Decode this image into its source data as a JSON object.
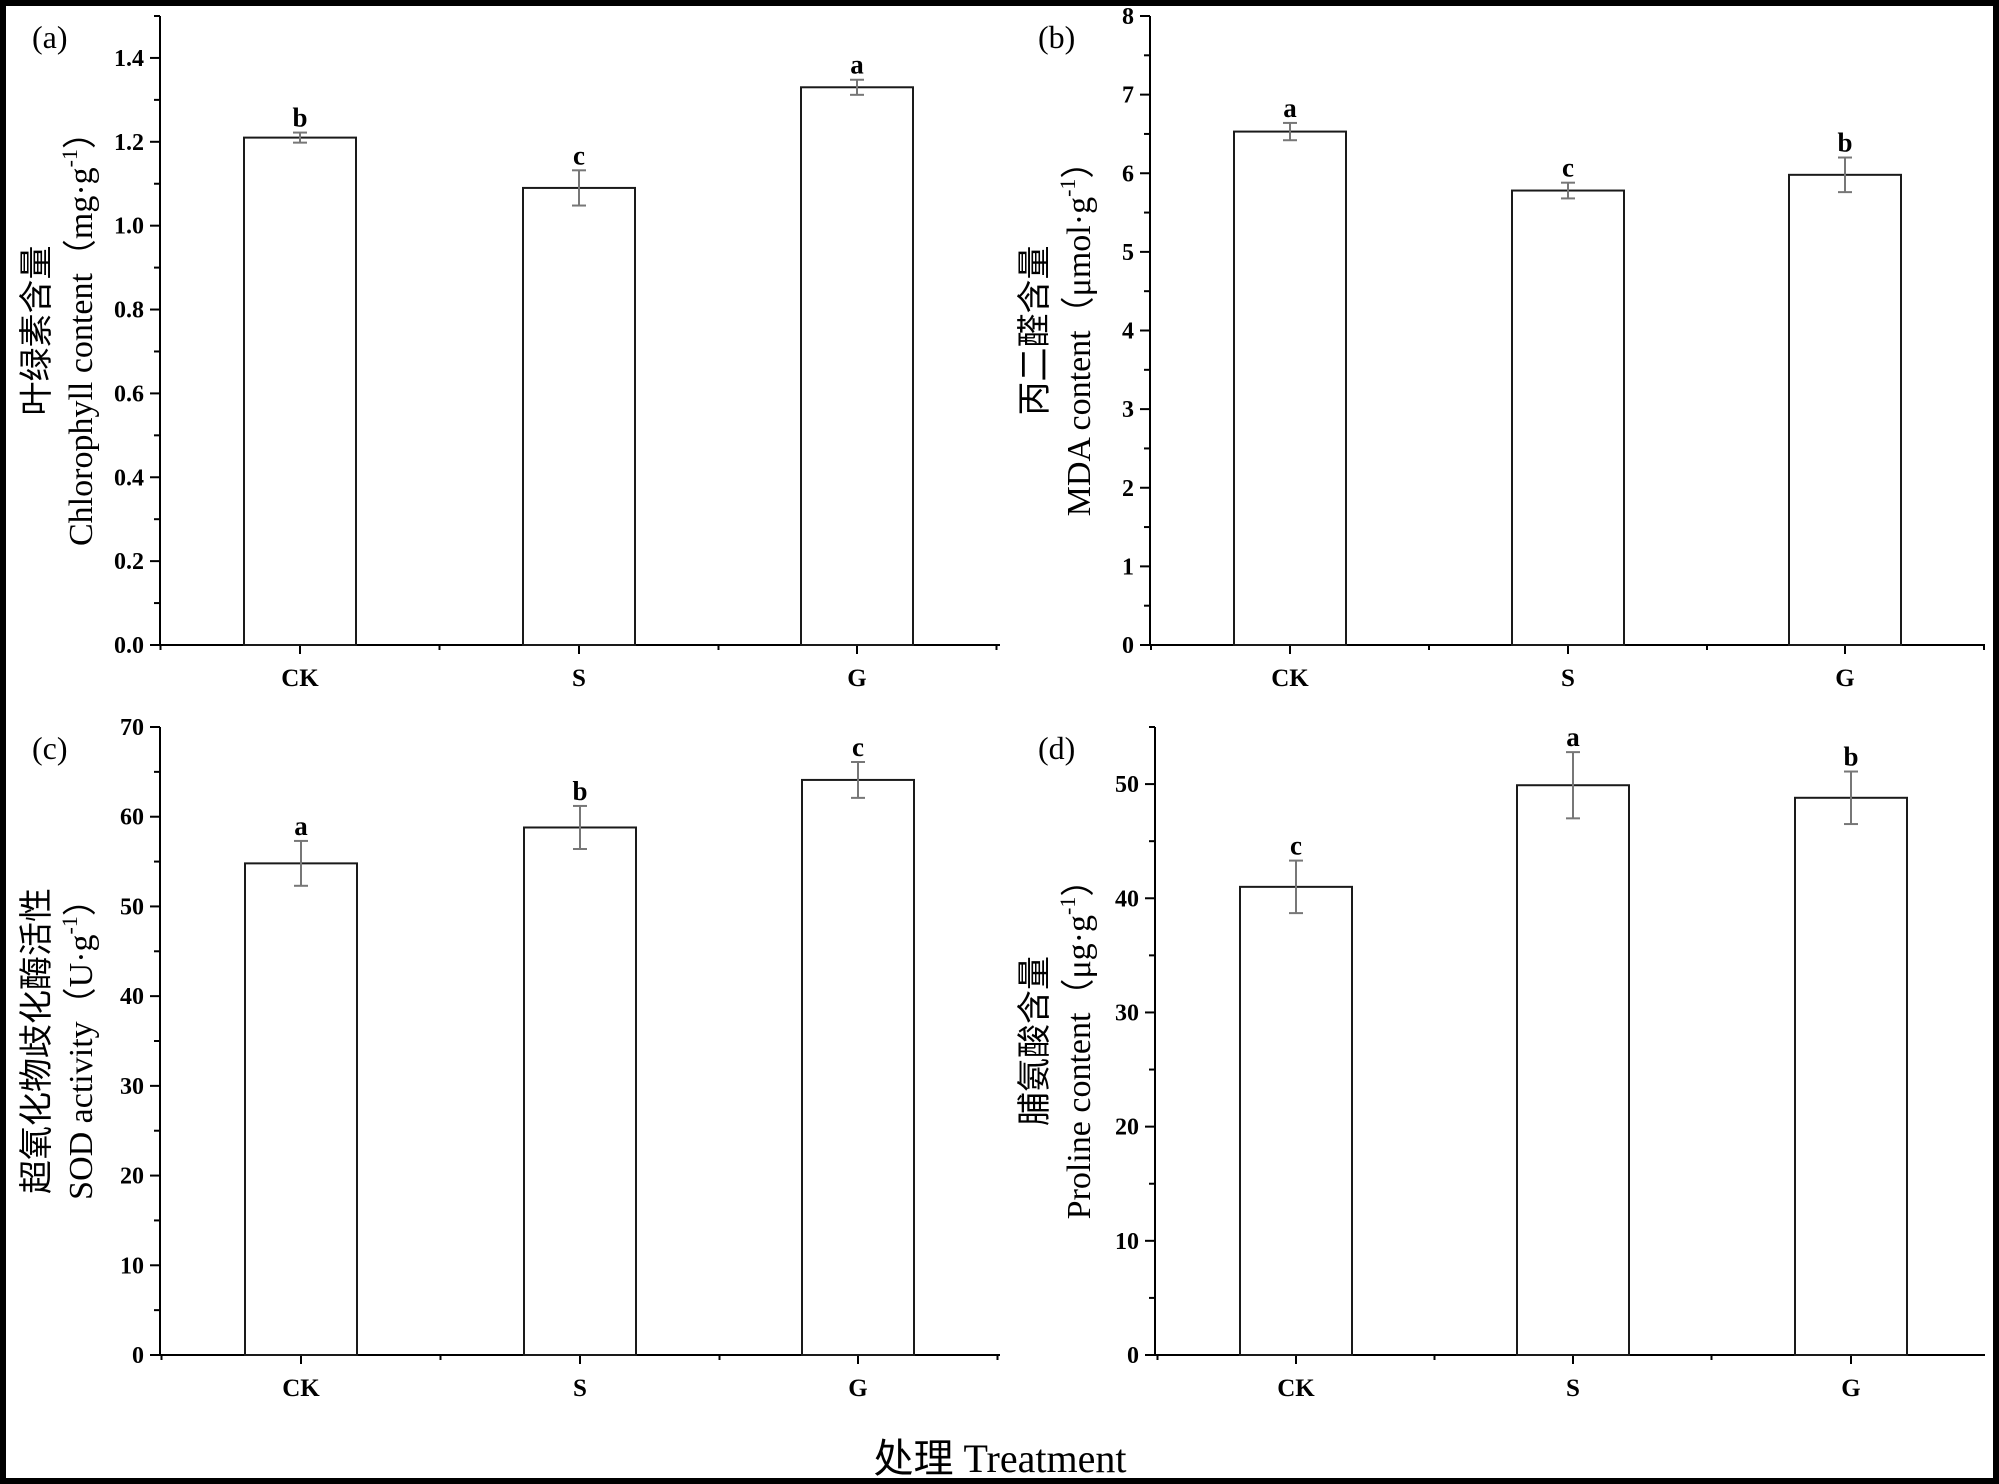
{
  "figure": {
    "xlabel": "处理  Treatment"
  },
  "chart_data": [
    {
      "type": "bar",
      "panel_label": "(a)",
      "categories": [
        "CK",
        "S",
        "G"
      ],
      "values": [
        1.21,
        1.09,
        1.33
      ],
      "errors": [
        0.012,
        0.042,
        0.018
      ],
      "significance": [
        "b",
        "c",
        "a"
      ],
      "ylabel_line1": "叶绿素含量",
      "ylabel_line2": "Chlorophyll content（mg·g",
      "ylabel_sup": "-1",
      "ylabel_close": "）",
      "ylim": [
        0,
        1.5
      ],
      "yticks": [
        0.0,
        0.2,
        0.4,
        0.6,
        0.8,
        1.0,
        1.2,
        1.4
      ],
      "ytick_labels": [
        "0.0",
        "0.2",
        "0.4",
        "0.6",
        "0.8",
        "1.0",
        "1.2",
        "1.4"
      ]
    },
    {
      "type": "bar",
      "panel_label": "(b)",
      "categories": [
        "CK",
        "S",
        "G"
      ],
      "values": [
        6.53,
        5.78,
        5.98
      ],
      "errors": [
        0.11,
        0.1,
        0.22
      ],
      "significance": [
        "a",
        "c",
        "b"
      ],
      "ylabel_line1": "丙二醛含量",
      "ylabel_line2": "MDA content（μmol·g",
      "ylabel_sup": "-1",
      "ylabel_close": "）",
      "ylim": [
        0,
        8
      ],
      "yticks": [
        0,
        1,
        2,
        3,
        4,
        5,
        6,
        7,
        8
      ],
      "ytick_labels": [
        "0",
        "1",
        "2",
        "3",
        "4",
        "5",
        "6",
        "7",
        "8"
      ]
    },
    {
      "type": "bar",
      "panel_label": "(c)",
      "categories": [
        "CK",
        "S",
        "G"
      ],
      "values": [
        54.8,
        58.8,
        64.1
      ],
      "errors": [
        2.5,
        2.4,
        2.0
      ],
      "significance": [
        "a",
        "b",
        "c"
      ],
      "ylabel_line1": "超氧化物歧化酶活性",
      "ylabel_line2": "SOD activity（U·g",
      "ylabel_sup": "-1",
      "ylabel_close": "）",
      "ylim": [
        0,
        70
      ],
      "yticks": [
        0,
        10,
        20,
        30,
        40,
        50,
        60,
        70
      ],
      "ytick_labels": [
        "0",
        "10",
        "20",
        "30",
        "40",
        "50",
        "60",
        "70"
      ]
    },
    {
      "type": "bar",
      "panel_label": "(d)",
      "categories": [
        "CK",
        "S",
        "G"
      ],
      "values": [
        41.0,
        49.9,
        48.8
      ],
      "errors": [
        2.3,
        2.9,
        2.3
      ],
      "significance": [
        "c",
        "a",
        "b"
      ],
      "ylabel_line1": "脯氨酸含量",
      "ylabel_line2": "Proline content（μg·g",
      "ylabel_sup": "-1",
      "ylabel_close": "）",
      "ylim": [
        0,
        55
      ],
      "yticks": [
        0,
        10,
        20,
        30,
        40,
        50
      ],
      "ytick_labels": [
        "0",
        "10",
        "20",
        "30",
        "40",
        "50"
      ]
    }
  ]
}
